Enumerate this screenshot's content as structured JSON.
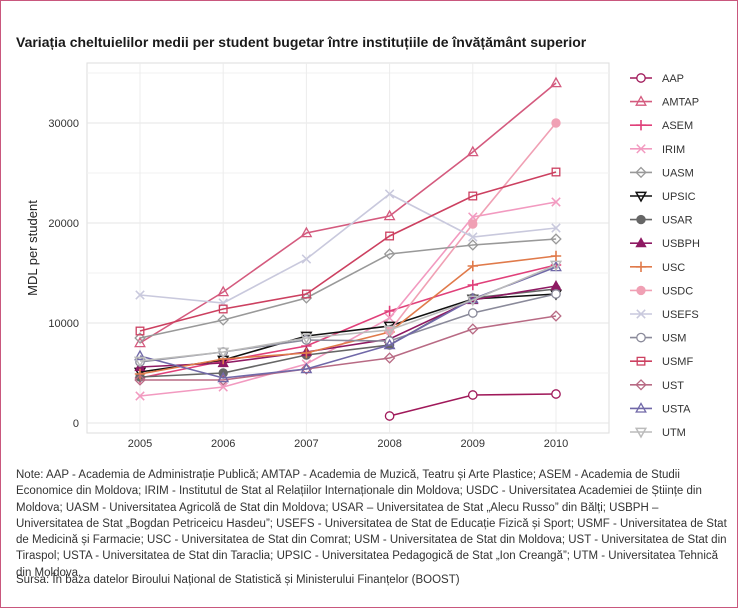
{
  "title": "Variația cheltuielilor medii per student bugetar între instituțiile de învățământ superior",
  "note": "Note: AAP - Academia de Administrație Publică; AMTAP - Academia de Muzică, Teatru și Arte Plastice; ASEM - Academia de Studii Economice din Moldova; IRIM - Institutul de Stat al Relațiilor Internaționale din Moldova; USDC - Universitatea Academiei de Științe din Moldova; UASM - Universitatea Agricolă de Stat din Moldova; USAR – Universitatea de Stat „Alecu Russo” din Bălți; USBPH – Universitatea de Stat „Bogdan Petriceicu Hasdeu”; USEFS - Universitatea de Stat de Educație Fizică și Sport; USMF - Universitatea de Stat de Medicină și Farmacie; USC - Universitatea de Stat din Comrat; USM - Universitatea de Stat din Moldova; UST - Universitatea de Stat din Tiraspol; USTA - Universitatea de Stat din Taraclia; UPSIC - Universitatea Pedagogică de Stat „Ion Creangă”; UTM  - Universitatea Tehnică din Moldova.",
  "source": "Sursa: În baza datelor Biroului Național de Statistică și Ministerului Finanțelor (BOOST)",
  "chart_data": {
    "type": "line",
    "title": "Variația cheltuielilor medii per student bugetar între instituțiile de învățământ superior",
    "xlabel": "",
    "ylabel": "MDL per student",
    "x": [
      "2005",
      "2006",
      "2007",
      "2008",
      "2009",
      "2010"
    ],
    "xlim": [
      2005,
      2010
    ],
    "ylim": [
      -1000,
      36000
    ],
    "yticks": [
      0,
      10000,
      20000,
      30000
    ],
    "ytick_labels": [
      "0",
      "10000",
      "20000",
      "30000"
    ],
    "grid": true,
    "legend": "right",
    "series": [
      {
        "name": "AAP",
        "color": "#a0195a",
        "marker": "circle-open",
        "values": [
          null,
          null,
          null,
          700,
          2800,
          2900
        ]
      },
      {
        "name": "AMTAP",
        "color": "#d45a7e",
        "marker": "triangle-open",
        "values": [
          8000,
          13100,
          19000,
          20700,
          27100,
          34000
        ]
      },
      {
        "name": "ASEM",
        "color": "#e0407a",
        "marker": "plus",
        "values": [
          4500,
          6200,
          7700,
          11200,
          13800,
          15800
        ]
      },
      {
        "name": "IRIM",
        "color": "#f29ac0",
        "marker": "cross",
        "values": [
          2700,
          3600,
          5900,
          10500,
          20600,
          22100
        ]
      },
      {
        "name": "UASM",
        "color": "#999999",
        "marker": "diamond-open",
        "values": [
          8500,
          10300,
          12500,
          16900,
          17800,
          18400
        ]
      },
      {
        "name": "UPSIC",
        "color": "#111111",
        "marker": "triangle-down-open",
        "values": [
          5100,
          6300,
          8700,
          9700,
          12400,
          12900
        ]
      },
      {
        "name": "USAR",
        "color": "#666666",
        "marker": "circle-filled",
        "values": [
          4600,
          5000,
          6800,
          7800,
          12500,
          13400
        ]
      },
      {
        "name": "USBPH",
        "color": "#8e1a63",
        "marker": "triangle-filled",
        "values": [
          5600,
          6000,
          7100,
          8400,
          12300,
          13700
        ]
      },
      {
        "name": "USC",
        "color": "#e07a4a",
        "marker": "plus",
        "values": [
          4900,
          6400,
          7000,
          9100,
          15700,
          16700
        ]
      },
      {
        "name": "USDC",
        "color": "#f0a0b4",
        "marker": "circle-filled",
        "values": [
          null,
          null,
          null,
          9200,
          19900,
          30000
        ]
      },
      {
        "name": "USEFS",
        "color": "#c9c9dd",
        "marker": "cross",
        "values": [
          12800,
          12000,
          16400,
          22900,
          18600,
          19500
        ]
      },
      {
        "name": "USM",
        "color": "#8a8a9a",
        "marker": "circle-open",
        "values": [
          6100,
          7100,
          8300,
          8200,
          11000,
          12900
        ]
      },
      {
        "name": "USMF",
        "color": "#cc4060",
        "marker": "square-open",
        "values": [
          9200,
          11400,
          12900,
          18700,
          22700,
          25100
        ]
      },
      {
        "name": "UST",
        "color": "#b86a84",
        "marker": "diamond-open",
        "values": [
          4300,
          4300,
          5400,
          6500,
          9400,
          10700
        ]
      },
      {
        "name": "USTA",
        "color": "#7068a8",
        "marker": "triangle-open",
        "values": [
          6700,
          4500,
          5400,
          7800,
          12400,
          15600
        ]
      },
      {
        "name": "UTM",
        "color": "#bbbbbb",
        "marker": "triangle-down-open",
        "values": [
          6200,
          7100,
          8500,
          9300,
          12300,
          15800
        ]
      }
    ]
  }
}
